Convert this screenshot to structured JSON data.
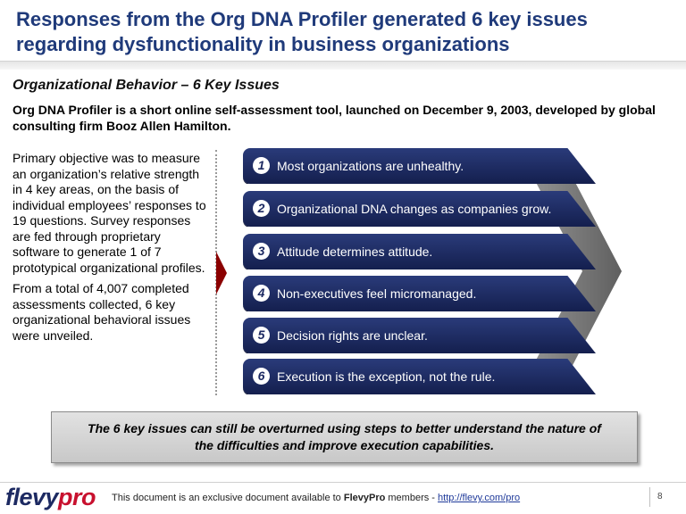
{
  "header": {
    "title": "Responses from the Org DNA Profiler generated 6 key issues regarding dysfunctionality in business organizations"
  },
  "slide": {
    "subtitle": "Organizational Behavior – 6 Key Issues",
    "intro": "Org DNA Profiler is a short online self-assessment tool, launched on December 9, 2003, developed by global consulting firm Booz Allen Hamilton.",
    "left_paragraphs": [
      "Primary objective was to measure an organization’s relative strength in 4 key areas, on the basis of individual employees’ responses to 19 questions. Survey responses are fed through proprietary software to generate 1 of 7 prototypical organizational profiles.",
      "From a total of 4,007 completed assessments collected, 6 key organizational behavioral issues were unveiled."
    ],
    "issues": [
      {
        "num": "1",
        "text": "Most organizations are unhealthy."
      },
      {
        "num": "2",
        "text": "Organizational DNA changes as companies grow."
      },
      {
        "num": "3",
        "text": "Attitude determines attitude."
      },
      {
        "num": "4",
        "text": "Non-executives feel micromanaged."
      },
      {
        "num": "5",
        "text": "Decision rights are unclear."
      },
      {
        "num": "6",
        "text": "Execution is the exception, not the rule."
      }
    ],
    "callout": "The 6 key issues can still be overturned using steps to better understand the nature of the difficulties and improve execution capabilities."
  },
  "footer": {
    "logo_main": "flevy",
    "logo_accent": "pro",
    "text_prefix": "This document is an exclusive document available to ",
    "brand": "FlevyPro",
    "text_mid": " members - ",
    "link": "http://flevy.com/pro",
    "page_number": "8"
  },
  "colors": {
    "title": "#1f3a7a",
    "banner": "#1d2a62",
    "arrow_red": "#8b0000",
    "chevron_gray": "#7a7a7a",
    "logo_red": "#c8102e"
  }
}
